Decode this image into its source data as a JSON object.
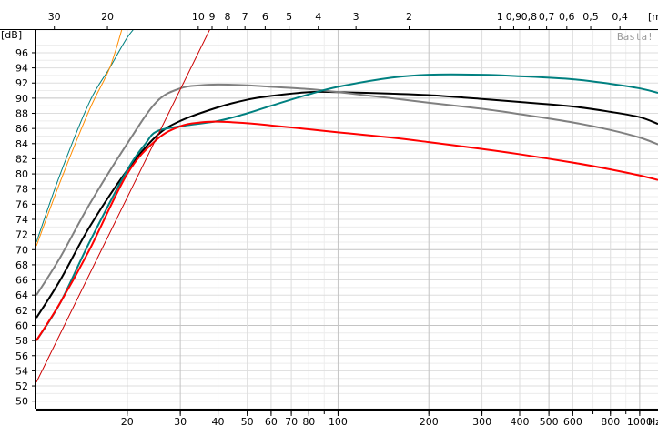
{
  "chart_data": {
    "type": "line",
    "title": "",
    "watermark": "Basta!",
    "ylabel": "[dB]",
    "xlabel": "Hz",
    "top_axis_label": "[m",
    "x_scale": "log",
    "xlim": [
      10,
      1150
    ],
    "ylim": [
      49,
      99
    ],
    "y_ticks": [
      50,
      52,
      54,
      56,
      58,
      60,
      62,
      64,
      66,
      68,
      70,
      72,
      74,
      76,
      78,
      80,
      82,
      84,
      86,
      88,
      90,
      92,
      94,
      96
    ],
    "x_ticks": [
      20,
      30,
      40,
      50,
      60,
      70,
      80,
      100,
      200,
      300,
      400,
      500,
      600,
      800,
      1000
    ],
    "x_tick_labels": [
      "20",
      "30",
      "40",
      "50",
      "60",
      "70",
      "80",
      "100",
      "200",
      "300",
      "400",
      "500",
      "600",
      "800",
      "1000"
    ],
    "x_unit_label": "Hz",
    "top_ticks": [
      30,
      20,
      10,
      9,
      8,
      7,
      6,
      5,
      4,
      3,
      2,
      1,
      0.9,
      0.8,
      0.7,
      0.6,
      0.5,
      0.4
    ],
    "top_tick_labels": [
      "30",
      "20",
      "10",
      "9",
      "8",
      "7",
      "6",
      "5",
      "4",
      "3",
      "2",
      "1",
      "0,9",
      "0,8",
      "0,7",
      "0,6",
      "0,5",
      "0,4"
    ],
    "wavelength_constant": 344,
    "grid": true,
    "series": [
      {
        "color": "#000000",
        "width": 2,
        "x": [
          10,
          12,
          15,
          20,
          25,
          30,
          40,
          50,
          60,
          80,
          100,
          150,
          200,
          300,
          400,
          600,
          800,
          1000,
          1150
        ],
        "y": [
          61,
          66,
          73,
          80.5,
          85,
          87,
          88.8,
          89.8,
          90.3,
          90.8,
          90.8,
          90.6,
          90.4,
          89.9,
          89.5,
          88.9,
          88.2,
          87.5,
          86.6
        ]
      },
      {
        "color": "#808080",
        "width": 2,
        "x": [
          10,
          12,
          15,
          20,
          25,
          30,
          35,
          40,
          50,
          60,
          80,
          100,
          150,
          200,
          300,
          400,
          600,
          800,
          1000,
          1150
        ],
        "y": [
          64,
          69,
          76,
          84,
          89.5,
          91.3,
          91.7,
          91.8,
          91.7,
          91.5,
          91.2,
          90.8,
          90,
          89.4,
          88.6,
          87.9,
          86.8,
          85.8,
          84.8,
          83.9
        ]
      },
      {
        "color": "#008080",
        "width": 2,
        "x": [
          10,
          12,
          15,
          20,
          23,
          25,
          30,
          40,
          50,
          60,
          80,
          100,
          150,
          200,
          300,
          400,
          600,
          800,
          1000,
          1150
        ],
        "y": [
          58,
          63,
          71,
          80.5,
          84,
          85.6,
          86.3,
          87,
          88,
          89,
          90.5,
          91.5,
          92.7,
          93.1,
          93.1,
          92.9,
          92.5,
          91.9,
          91.3,
          90.7
        ]
      },
      {
        "color": "#ff0000",
        "width": 2,
        "x": [
          10,
          12,
          15,
          20,
          25,
          30,
          35,
          40,
          50,
          60,
          80,
          100,
          150,
          200,
          300,
          400,
          600,
          800,
          1000,
          1150
        ],
        "y": [
          58,
          63,
          70,
          80,
          84.5,
          86.3,
          86.8,
          86.9,
          86.7,
          86.4,
          85.9,
          85.5,
          84.8,
          84.2,
          83.3,
          82.6,
          81.5,
          80.6,
          79.8,
          79.2
        ]
      },
      {
        "color": "#cc0000",
        "width": 1,
        "x": [
          10,
          42
        ],
        "y": [
          52.5,
          103
        ]
      },
      {
        "color": "#008080",
        "width": 1,
        "x": [
          10,
          12,
          15,
          17.5,
          20,
          22
        ],
        "y": [
          71,
          80,
          89.5,
          94,
          98,
          100
        ]
      },
      {
        "color": "#ff8c00",
        "width": 1,
        "x": [
          10,
          12,
          15,
          17.5,
          19.5
        ],
        "y": [
          70.5,
          79,
          88.5,
          94,
          100
        ]
      }
    ]
  }
}
